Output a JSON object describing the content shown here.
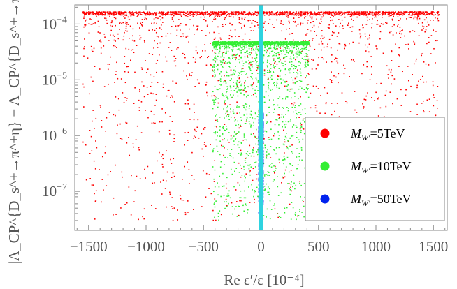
{
  "chart_data": {
    "type": "scatter",
    "xlabel": "Re ε′/ε [10⁻⁴]",
    "ylabel": "|A_CP^{D_s^+→π^+η} − A_CP^{D_s^+→π^+η′}|",
    "xlim": [
      -1620,
      1620
    ],
    "ylim": [
      2e-08,
      0.00022
    ],
    "y_scale": "log",
    "x_ticks": [
      -1500,
      -1000,
      -500,
      0,
      500,
      1000,
      1500
    ],
    "x_tick_labels": [
      "−1500",
      "−1000",
      "−500",
      "0",
      "500",
      "1000",
      "1500"
    ],
    "y_ticks": [
      1e-07,
      1e-06,
      1e-05,
      0.0001
    ],
    "y_tick_labels": [
      {
        "base": "10",
        "exp": "−7"
      },
      {
        "base": "10",
        "exp": "−6"
      },
      {
        "base": "10",
        "exp": "−5"
      },
      {
        "base": "10",
        "exp": "−4"
      }
    ],
    "vertical_line": {
      "x": 0,
      "color": "#2fd3e0"
    },
    "legend_position": "right",
    "series": [
      {
        "name": "M_W′=5TeV",
        "label_main": "M",
        "label_sub": "W′",
        "label_rest": "=5TeV",
        "color": "#ff0000",
        "x_range": [
          -1550,
          1550
        ],
        "y_max": 0.000165,
        "y_min": 3e-08,
        "count": 2600
      },
      {
        "name": "M_W′=10TeV",
        "label_main": "M",
        "label_sub": "W′",
        "label_rest": "=10TeV",
        "color": "#33ee33",
        "x_range": [
          -420,
          420
        ],
        "y_max": 4.8e-05,
        "y_min": 3e-08,
        "count": 2200
      },
      {
        "name": "M_W′=50TeV",
        "label_main": "M",
        "label_sub": "W′",
        "label_rest": "=50TeV",
        "color": "#0022ee",
        "x_range": [
          -16,
          16
        ],
        "y_max": 2.5e-06,
        "y_min": 2.2e-08,
        "count": 900
      }
    ]
  }
}
